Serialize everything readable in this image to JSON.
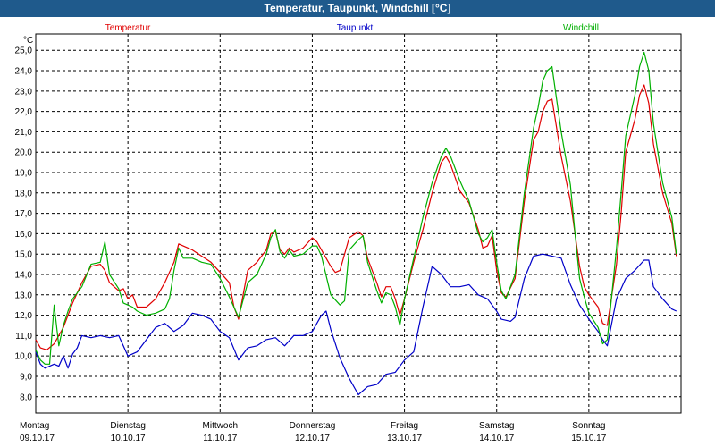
{
  "window": {
    "title": "Temperatur, Taupunkt, Windchill [°C]"
  },
  "chart_data": {
    "type": "line",
    "title": "Temperatur, Taupunkt, Windchill [°C]",
    "ylabel": "°C",
    "ylim": [
      7.2,
      25.8
    ],
    "xlim": [
      0,
      7
    ],
    "yticks": [
      "8,0",
      "9,0",
      "10,0",
      "11,0",
      "12,0",
      "13,0",
      "14,0",
      "15,0",
      "16,0",
      "17,0",
      "18,0",
      "19,0",
      "20,0",
      "21,0",
      "22,0",
      "23,0",
      "24,0",
      "25,0"
    ],
    "days": [
      {
        "name": "Montag",
        "date": "09.10.17"
      },
      {
        "name": "Dienstag",
        "date": "10.10.17"
      },
      {
        "name": "Mittwoch",
        "date": "11.10.17"
      },
      {
        "name": "Donnerstag",
        "date": "12.10.17"
      },
      {
        "name": "Freitag",
        "date": "13.10.17"
      },
      {
        "name": "Samstag",
        "date": "14.10.17"
      },
      {
        "name": "Sonntag",
        "date": "15.10.17"
      }
    ],
    "grid": true,
    "series": [
      {
        "name": "Temperatur",
        "color": "#e00000",
        "points": [
          [
            0,
            10.8
          ],
          [
            0.05,
            10.4
          ],
          [
            0.12,
            10.3
          ],
          [
            0.2,
            10.6
          ],
          [
            0.3,
            11.4
          ],
          [
            0.4,
            12.6
          ],
          [
            0.5,
            13.6
          ],
          [
            0.6,
            14.4
          ],
          [
            0.7,
            14.5
          ],
          [
            0.75,
            14.2
          ],
          [
            0.8,
            13.6
          ],
          [
            0.9,
            13.2
          ],
          [
            0.95,
            13.3
          ],
          [
            1.0,
            12.8
          ],
          [
            1.05,
            13.0
          ],
          [
            1.1,
            12.4
          ],
          [
            1.2,
            12.4
          ],
          [
            1.3,
            12.8
          ],
          [
            1.4,
            13.6
          ],
          [
            1.5,
            14.6
          ],
          [
            1.55,
            15.5
          ],
          [
            1.6,
            15.4
          ],
          [
            1.7,
            15.2
          ],
          [
            1.8,
            14.9
          ],
          [
            1.9,
            14.6
          ],
          [
            2.0,
            14.1
          ],
          [
            2.1,
            13.6
          ],
          [
            2.15,
            12.4
          ],
          [
            2.2,
            11.8
          ],
          [
            2.3,
            14.2
          ],
          [
            2.4,
            14.6
          ],
          [
            2.5,
            15.2
          ],
          [
            2.55,
            16.0
          ],
          [
            2.6,
            16.1
          ],
          [
            2.65,
            15.2
          ],
          [
            2.7,
            15.0
          ],
          [
            2.75,
            15.3
          ],
          [
            2.8,
            15.1
          ],
          [
            2.9,
            15.3
          ],
          [
            3.0,
            15.8
          ],
          [
            3.05,
            15.6
          ],
          [
            3.1,
            15.2
          ],
          [
            3.2,
            14.4
          ],
          [
            3.25,
            14.1
          ],
          [
            3.3,
            14.2
          ],
          [
            3.4,
            15.8
          ],
          [
            3.5,
            16.1
          ],
          [
            3.55,
            15.9
          ],
          [
            3.6,
            14.8
          ],
          [
            3.7,
            13.6
          ],
          [
            3.75,
            12.9
          ],
          [
            3.8,
            13.4
          ],
          [
            3.85,
            13.4
          ],
          [
            3.9,
            12.8
          ],
          [
            3.95,
            12.0
          ],
          [
            4.0,
            12.8
          ],
          [
            4.1,
            14.6
          ],
          [
            4.2,
            16.2
          ],
          [
            4.3,
            18.0
          ],
          [
            4.4,
            19.5
          ],
          [
            4.45,
            19.8
          ],
          [
            4.5,
            19.4
          ],
          [
            4.6,
            18.1
          ],
          [
            4.7,
            17.5
          ],
          [
            4.8,
            16.2
          ],
          [
            4.85,
            15.3
          ],
          [
            4.9,
            15.4
          ],
          [
            4.95,
            15.9
          ],
          [
            5.0,
            14.2
          ],
          [
            5.05,
            13.1
          ],
          [
            5.1,
            12.9
          ],
          [
            5.2,
            13.8
          ],
          [
            5.3,
            17.6
          ],
          [
            5.4,
            20.6
          ],
          [
            5.45,
            21.0
          ],
          [
            5.5,
            22.0
          ],
          [
            5.55,
            22.5
          ],
          [
            5.6,
            22.6
          ],
          [
            5.7,
            19.8
          ],
          [
            5.8,
            17.6
          ],
          [
            5.85,
            16.0
          ],
          [
            5.9,
            14.4
          ],
          [
            5.95,
            13.4
          ],
          [
            6.0,
            13.0
          ],
          [
            6.1,
            12.4
          ],
          [
            6.15,
            11.6
          ],
          [
            6.2,
            11.5
          ],
          [
            6.3,
            14.5
          ],
          [
            6.35,
            17.0
          ],
          [
            6.4,
            20.0
          ],
          [
            6.5,
            21.6
          ],
          [
            6.55,
            22.8
          ],
          [
            6.6,
            23.3
          ],
          [
            6.65,
            22.4
          ],
          [
            6.7,
            20.4
          ],
          [
            6.8,
            18.0
          ],
          [
            6.9,
            16.5
          ],
          [
            6.95,
            14.9
          ]
        ]
      },
      {
        "name": "Taupunkt",
        "color": "#0000c8",
        "points": [
          [
            0,
            10.2
          ],
          [
            0.05,
            9.6
          ],
          [
            0.1,
            9.4
          ],
          [
            0.2,
            9.6
          ],
          [
            0.25,
            9.5
          ],
          [
            0.3,
            10.0
          ],
          [
            0.35,
            9.4
          ],
          [
            0.4,
            10.1
          ],
          [
            0.45,
            10.4
          ],
          [
            0.5,
            11.0
          ],
          [
            0.6,
            10.9
          ],
          [
            0.7,
            11.0
          ],
          [
            0.8,
            10.9
          ],
          [
            0.9,
            11.0
          ],
          [
            0.95,
            10.5
          ],
          [
            1.0,
            10.0
          ],
          [
            1.1,
            10.2
          ],
          [
            1.2,
            10.8
          ],
          [
            1.3,
            11.4
          ],
          [
            1.4,
            11.6
          ],
          [
            1.5,
            11.2
          ],
          [
            1.6,
            11.5
          ],
          [
            1.7,
            12.1
          ],
          [
            1.8,
            12.0
          ],
          [
            1.9,
            11.8
          ],
          [
            2.0,
            11.2
          ],
          [
            2.1,
            10.9
          ],
          [
            2.2,
            9.8
          ],
          [
            2.3,
            10.4
          ],
          [
            2.4,
            10.5
          ],
          [
            2.5,
            10.8
          ],
          [
            2.6,
            10.9
          ],
          [
            2.7,
            10.5
          ],
          [
            2.8,
            11.0
          ],
          [
            2.9,
            11.0
          ],
          [
            3.0,
            11.2
          ],
          [
            3.1,
            12.0
          ],
          [
            3.15,
            12.2
          ],
          [
            3.2,
            11.3
          ],
          [
            3.3,
            9.9
          ],
          [
            3.4,
            8.9
          ],
          [
            3.5,
            8.1
          ],
          [
            3.6,
            8.5
          ],
          [
            3.7,
            8.6
          ],
          [
            3.8,
            9.1
          ],
          [
            3.9,
            9.2
          ],
          [
            4.0,
            9.8
          ],
          [
            4.1,
            10.2
          ],
          [
            4.2,
            12.4
          ],
          [
            4.3,
            14.4
          ],
          [
            4.4,
            14.0
          ],
          [
            4.5,
            13.4
          ],
          [
            4.6,
            13.4
          ],
          [
            4.7,
            13.5
          ],
          [
            4.8,
            13.0
          ],
          [
            4.9,
            12.8
          ],
          [
            5.0,
            12.2
          ],
          [
            5.05,
            11.8
          ],
          [
            5.15,
            11.7
          ],
          [
            5.2,
            11.9
          ],
          [
            5.3,
            13.8
          ],
          [
            5.4,
            14.9
          ],
          [
            5.5,
            15.0
          ],
          [
            5.6,
            14.9
          ],
          [
            5.7,
            14.8
          ],
          [
            5.8,
            13.5
          ],
          [
            5.9,
            12.5
          ],
          [
            6.0,
            11.8
          ],
          [
            6.1,
            11.2
          ],
          [
            6.15,
            10.8
          ],
          [
            6.2,
            10.5
          ],
          [
            6.3,
            12.8
          ],
          [
            6.4,
            13.8
          ],
          [
            6.5,
            14.2
          ],
          [
            6.6,
            14.7
          ],
          [
            6.65,
            14.7
          ],
          [
            6.7,
            13.4
          ],
          [
            6.8,
            12.8
          ],
          [
            6.9,
            12.3
          ],
          [
            6.95,
            12.2
          ]
        ]
      },
      {
        "name": "Windchill",
        "color": "#00b000",
        "points": [
          [
            0,
            10.3
          ],
          [
            0.05,
            9.8
          ],
          [
            0.1,
            9.6
          ],
          [
            0.15,
            9.6
          ],
          [
            0.2,
            12.5
          ],
          [
            0.25,
            10.5
          ],
          [
            0.3,
            11.5
          ],
          [
            0.35,
            12.2
          ],
          [
            0.4,
            12.8
          ],
          [
            0.5,
            13.4
          ],
          [
            0.6,
            14.5
          ],
          [
            0.7,
            14.6
          ],
          [
            0.75,
            15.6
          ],
          [
            0.8,
            14.0
          ],
          [
            0.9,
            13.3
          ],
          [
            0.95,
            12.6
          ],
          [
            1.0,
            12.5
          ],
          [
            1.05,
            12.4
          ],
          [
            1.1,
            12.2
          ],
          [
            1.2,
            12.0
          ],
          [
            1.3,
            12.1
          ],
          [
            1.4,
            12.3
          ],
          [
            1.45,
            12.8
          ],
          [
            1.5,
            14.2
          ],
          [
            1.55,
            15.3
          ],
          [
            1.6,
            14.8
          ],
          [
            1.7,
            14.8
          ],
          [
            1.8,
            14.6
          ],
          [
            1.9,
            14.5
          ],
          [
            2.0,
            13.8
          ],
          [
            2.1,
            12.9
          ],
          [
            2.2,
            11.9
          ],
          [
            2.3,
            13.6
          ],
          [
            2.4,
            14.0
          ],
          [
            2.5,
            15.0
          ],
          [
            2.55,
            15.8
          ],
          [
            2.6,
            16.2
          ],
          [
            2.65,
            15.1
          ],
          [
            2.7,
            14.8
          ],
          [
            2.75,
            15.2
          ],
          [
            2.8,
            14.9
          ],
          [
            2.9,
            15.0
          ],
          [
            3.0,
            15.4
          ],
          [
            3.05,
            15.4
          ],
          [
            3.1,
            14.9
          ],
          [
            3.2,
            13.0
          ],
          [
            3.3,
            12.5
          ],
          [
            3.35,
            12.7
          ],
          [
            3.4,
            15.2
          ],
          [
            3.5,
            15.7
          ],
          [
            3.55,
            15.9
          ],
          [
            3.6,
            14.6
          ],
          [
            3.7,
            13.2
          ],
          [
            3.75,
            12.6
          ],
          [
            3.8,
            13.1
          ],
          [
            3.85,
            13.0
          ],
          [
            3.9,
            12.4
          ],
          [
            3.95,
            11.5
          ],
          [
            4.0,
            12.8
          ],
          [
            4.1,
            14.8
          ],
          [
            4.2,
            16.8
          ],
          [
            4.3,
            18.5
          ],
          [
            4.4,
            19.8
          ],
          [
            4.45,
            20.2
          ],
          [
            4.5,
            19.8
          ],
          [
            4.6,
            18.6
          ],
          [
            4.7,
            17.6
          ],
          [
            4.8,
            16.0
          ],
          [
            4.85,
            15.6
          ],
          [
            4.9,
            15.8
          ],
          [
            4.95,
            16.2
          ],
          [
            5.0,
            14.6
          ],
          [
            5.05,
            13.2
          ],
          [
            5.1,
            12.8
          ],
          [
            5.2,
            14.0
          ],
          [
            5.3,
            18.0
          ],
          [
            5.4,
            21.2
          ],
          [
            5.45,
            22.2
          ],
          [
            5.5,
            23.5
          ],
          [
            5.55,
            24.0
          ],
          [
            5.6,
            24.2
          ],
          [
            5.7,
            21.0
          ],
          [
            5.8,
            18.4
          ],
          [
            5.85,
            16.0
          ],
          [
            5.9,
            13.8
          ],
          [
            5.95,
            12.9
          ],
          [
            6.0,
            12.1
          ],
          [
            6.1,
            11.4
          ],
          [
            6.15,
            10.6
          ],
          [
            6.2,
            10.8
          ],
          [
            6.3,
            15.3
          ],
          [
            6.35,
            18.0
          ],
          [
            6.4,
            20.8
          ],
          [
            6.5,
            22.8
          ],
          [
            6.55,
            24.2
          ],
          [
            6.6,
            24.9
          ],
          [
            6.65,
            24.0
          ],
          [
            6.7,
            21.4
          ],
          [
            6.8,
            18.5
          ],
          [
            6.9,
            16.8
          ],
          [
            6.95,
            15.0
          ]
        ]
      }
    ]
  }
}
